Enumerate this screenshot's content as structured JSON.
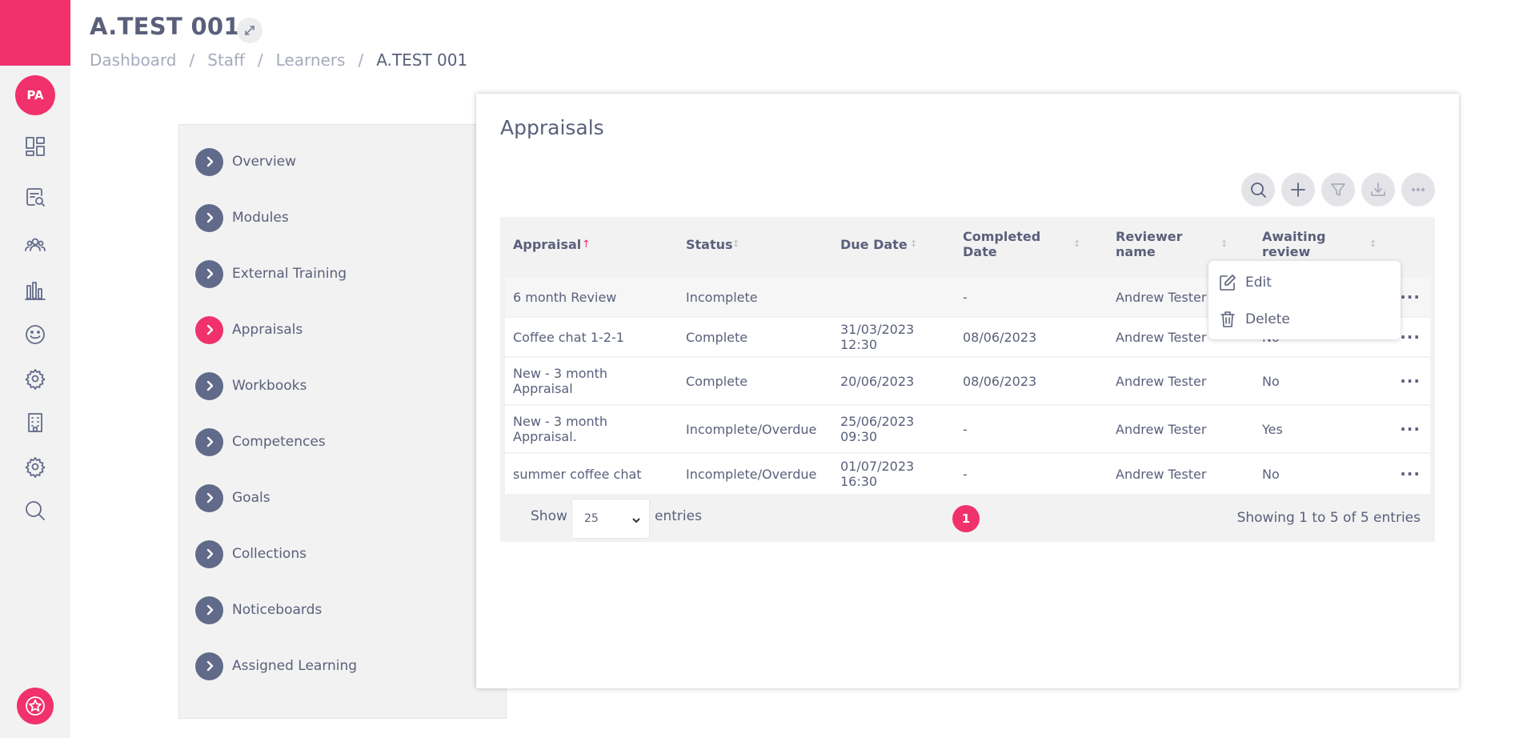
{
  "sidebar_rail": {
    "avatar_initials": "PA",
    "icons": [
      "dashboard-icon",
      "search-report-icon",
      "people-icon",
      "bar-chart-icon",
      "smiley-icon",
      "settings-icon",
      "building-icon",
      "settings-icon",
      "search-icon"
    ],
    "bottom_icon": "star-icon"
  },
  "header": {
    "title": "A.TEST 001",
    "breadcrumb": [
      "Dashboard",
      "Staff",
      "Learners",
      "A.TEST 001"
    ],
    "separator": "/"
  },
  "nav": {
    "items": [
      {
        "label": "Overview",
        "active": false
      },
      {
        "label": "Modules",
        "active": false
      },
      {
        "label": "External Training",
        "active": false
      },
      {
        "label": "Appraisals",
        "active": true
      },
      {
        "label": "Workbooks",
        "active": false
      },
      {
        "label": "Competences",
        "active": false
      },
      {
        "label": "Goals",
        "active": false
      },
      {
        "label": "Collections",
        "active": false
      },
      {
        "label": "Noticeboards",
        "active": false
      },
      {
        "label": "Assigned Learning",
        "active": false
      }
    ]
  },
  "main": {
    "title": "Appraisals",
    "toolbar": [
      "search-icon",
      "add-icon",
      "filter-icon",
      "download-icon",
      "more-icon"
    ],
    "table": {
      "columns": [
        "Appraisal",
        "Status",
        "Due Date",
        "Completed Date",
        "Reviewer name",
        "Awaiting review"
      ],
      "sort_column": "Appraisal",
      "sort_direction": "asc",
      "rows": [
        {
          "appraisal": "6 month Review",
          "status": "Incomplete",
          "due_date": "",
          "completed_date": "-",
          "reviewer": "Andrew Tester",
          "awaiting": ""
        },
        {
          "appraisal": "Coffee chat 1-2-1",
          "status": "Complete",
          "due_date": "31/03/2023 12:30",
          "completed_date": "08/06/2023",
          "reviewer": "Andrew Tester",
          "awaiting": "No"
        },
        {
          "appraisal": "New - 3 month Appraisal",
          "status": "Complete",
          "due_date": "20/06/2023",
          "completed_date": "08/06/2023",
          "reviewer": "Andrew Tester",
          "awaiting": "No"
        },
        {
          "appraisal": "New - 3 month Appraisal.",
          "status": "Incomplete/Overdue",
          "due_date": "25/06/2023 09:30",
          "completed_date": "-",
          "reviewer": "Andrew Tester",
          "awaiting": "Yes"
        },
        {
          "appraisal": "summer coffee chat",
          "status": "Incomplete/Overdue",
          "due_date": "01/07/2023 16:30",
          "completed_date": "-",
          "reviewer": "Andrew Tester",
          "awaiting": "No"
        }
      ]
    },
    "footer": {
      "show_label": "Show",
      "entries_value": "25",
      "entries_label": "entries",
      "current_page": "1",
      "showing_text": "Showing 1 to 5 of 5 entries"
    },
    "row_menu": {
      "items": [
        {
          "label": "Edit",
          "icon": "edit-icon"
        },
        {
          "label": "Delete",
          "icon": "trash-icon"
        }
      ]
    }
  },
  "colors": {
    "accent": "#f0316c",
    "text": "#5a607a",
    "muted": "#a6abbd",
    "panel": "#f2f2f2"
  }
}
